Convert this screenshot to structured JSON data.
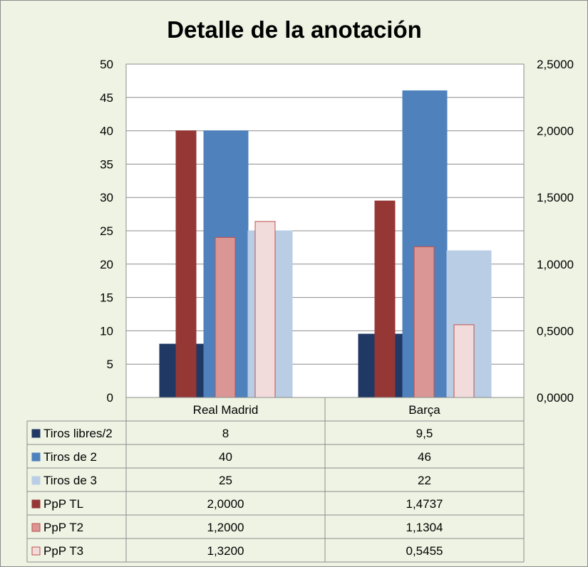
{
  "chart_data": {
    "type": "bar",
    "title": "Detalle de la anotación",
    "categories": [
      "Real Madrid",
      "Barça"
    ],
    "ylim": [
      0,
      50
    ],
    "y_ticks": [
      "0",
      "5",
      "10",
      "15",
      "20",
      "25",
      "30",
      "35",
      "40",
      "45",
      "50"
    ],
    "y2lim": [
      0,
      2.5
    ],
    "y2_ticks": [
      "0,0000",
      "0,5000",
      "1,0000",
      "1,5000",
      "2,0000",
      "2,5000"
    ],
    "grid": true,
    "legend": "data-table",
    "series": [
      {
        "name": "Tiros libres/2",
        "axis": "primary",
        "values": [
          8,
          9.5
        ],
        "labels": [
          "8",
          "9,5"
        ],
        "color": "#1f3864",
        "stroke": "#1f3864"
      },
      {
        "name": "Tiros de 2",
        "axis": "primary",
        "values": [
          40,
          46
        ],
        "labels": [
          "40",
          "46"
        ],
        "color": "#4f81bd",
        "stroke": "#4f81bd"
      },
      {
        "name": "Tiros de 3",
        "axis": "primary",
        "values": [
          25,
          22
        ],
        "labels": [
          "25",
          "22"
        ],
        "color": "#b9cde5",
        "stroke": "#b9cde5"
      },
      {
        "name": "PpP TL",
        "axis": "secondary",
        "values": [
          2.0,
          1.4737
        ],
        "labels": [
          "2,0000",
          "1,4737"
        ],
        "color": "#953735",
        "stroke": "#953735"
      },
      {
        "name": "PpP T2",
        "axis": "secondary",
        "values": [
          1.2,
          1.1304
        ],
        "labels": [
          "1,2000",
          "1,1304"
        ],
        "color": "#d99694",
        "stroke": "#c0504d"
      },
      {
        "name": "PpP T3",
        "axis": "secondary",
        "values": [
          1.32,
          0.5455
        ],
        "labels": [
          "1,3200",
          "0,5455"
        ],
        "color": "#f2dcdb",
        "stroke": "#c0504d"
      }
    ]
  }
}
